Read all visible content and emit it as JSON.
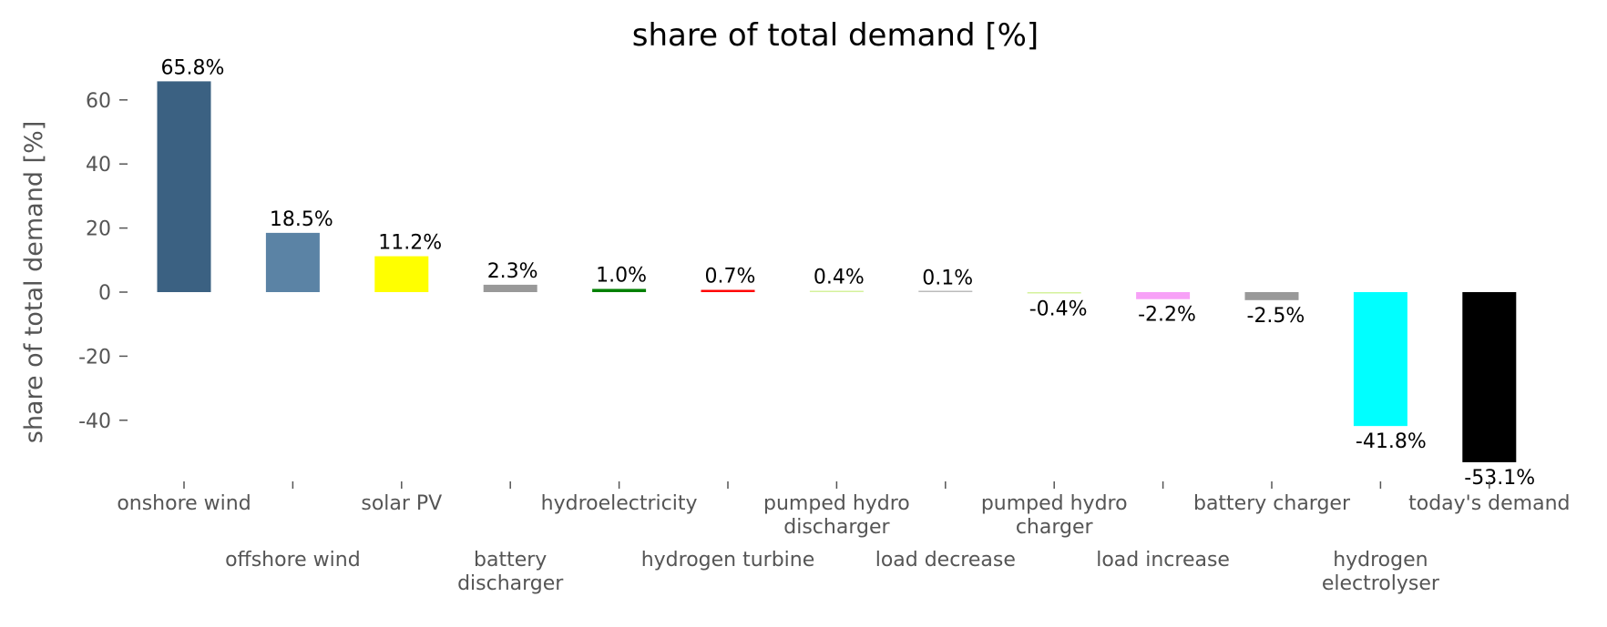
{
  "chart_data": {
    "type": "bar",
    "title": "share of total demand [%]",
    "xlabel": "",
    "ylabel": "share of total demand [%]",
    "ylim": [
      -59.5,
      69
    ],
    "yticks": [
      -40,
      -20,
      0,
      20,
      40,
      60
    ],
    "grid": false,
    "x_tick_rotation_deg": 15,
    "categories": [
      "onshore wind",
      "offshore wind",
      "solar PV",
      "battery discharger",
      "hydroelectricity",
      "hydrogen turbine",
      "pumped hydro discharger",
      "load decrease",
      "pumped hydro charger",
      "load increase",
      "battery charger",
      "hydrogen electrolyser",
      "today's demand"
    ],
    "values": [
      65.8,
      18.5,
      11.2,
      2.3,
      1.0,
      0.7,
      0.4,
      0.1,
      -0.4,
      -2.2,
      -2.5,
      -41.8,
      -53.1
    ],
    "data_labels": [
      "65.8%",
      "18.5%",
      "11.2%",
      "2.3%",
      "1.0%",
      "0.7%",
      "0.4%",
      "0.1%",
      "-0.4%",
      "-2.2%",
      "-2.5%",
      "-41.8%",
      "-53.1%"
    ],
    "colors": [
      "#3b6182",
      "#5b83a5",
      "#ffff00",
      "#999999",
      "#008000",
      "#ff0000",
      "#d4f29c",
      "#bbbbbb",
      "#d4f29c",
      "#f7a1f7",
      "#999999",
      "#00ffff",
      "#000000"
    ]
  }
}
